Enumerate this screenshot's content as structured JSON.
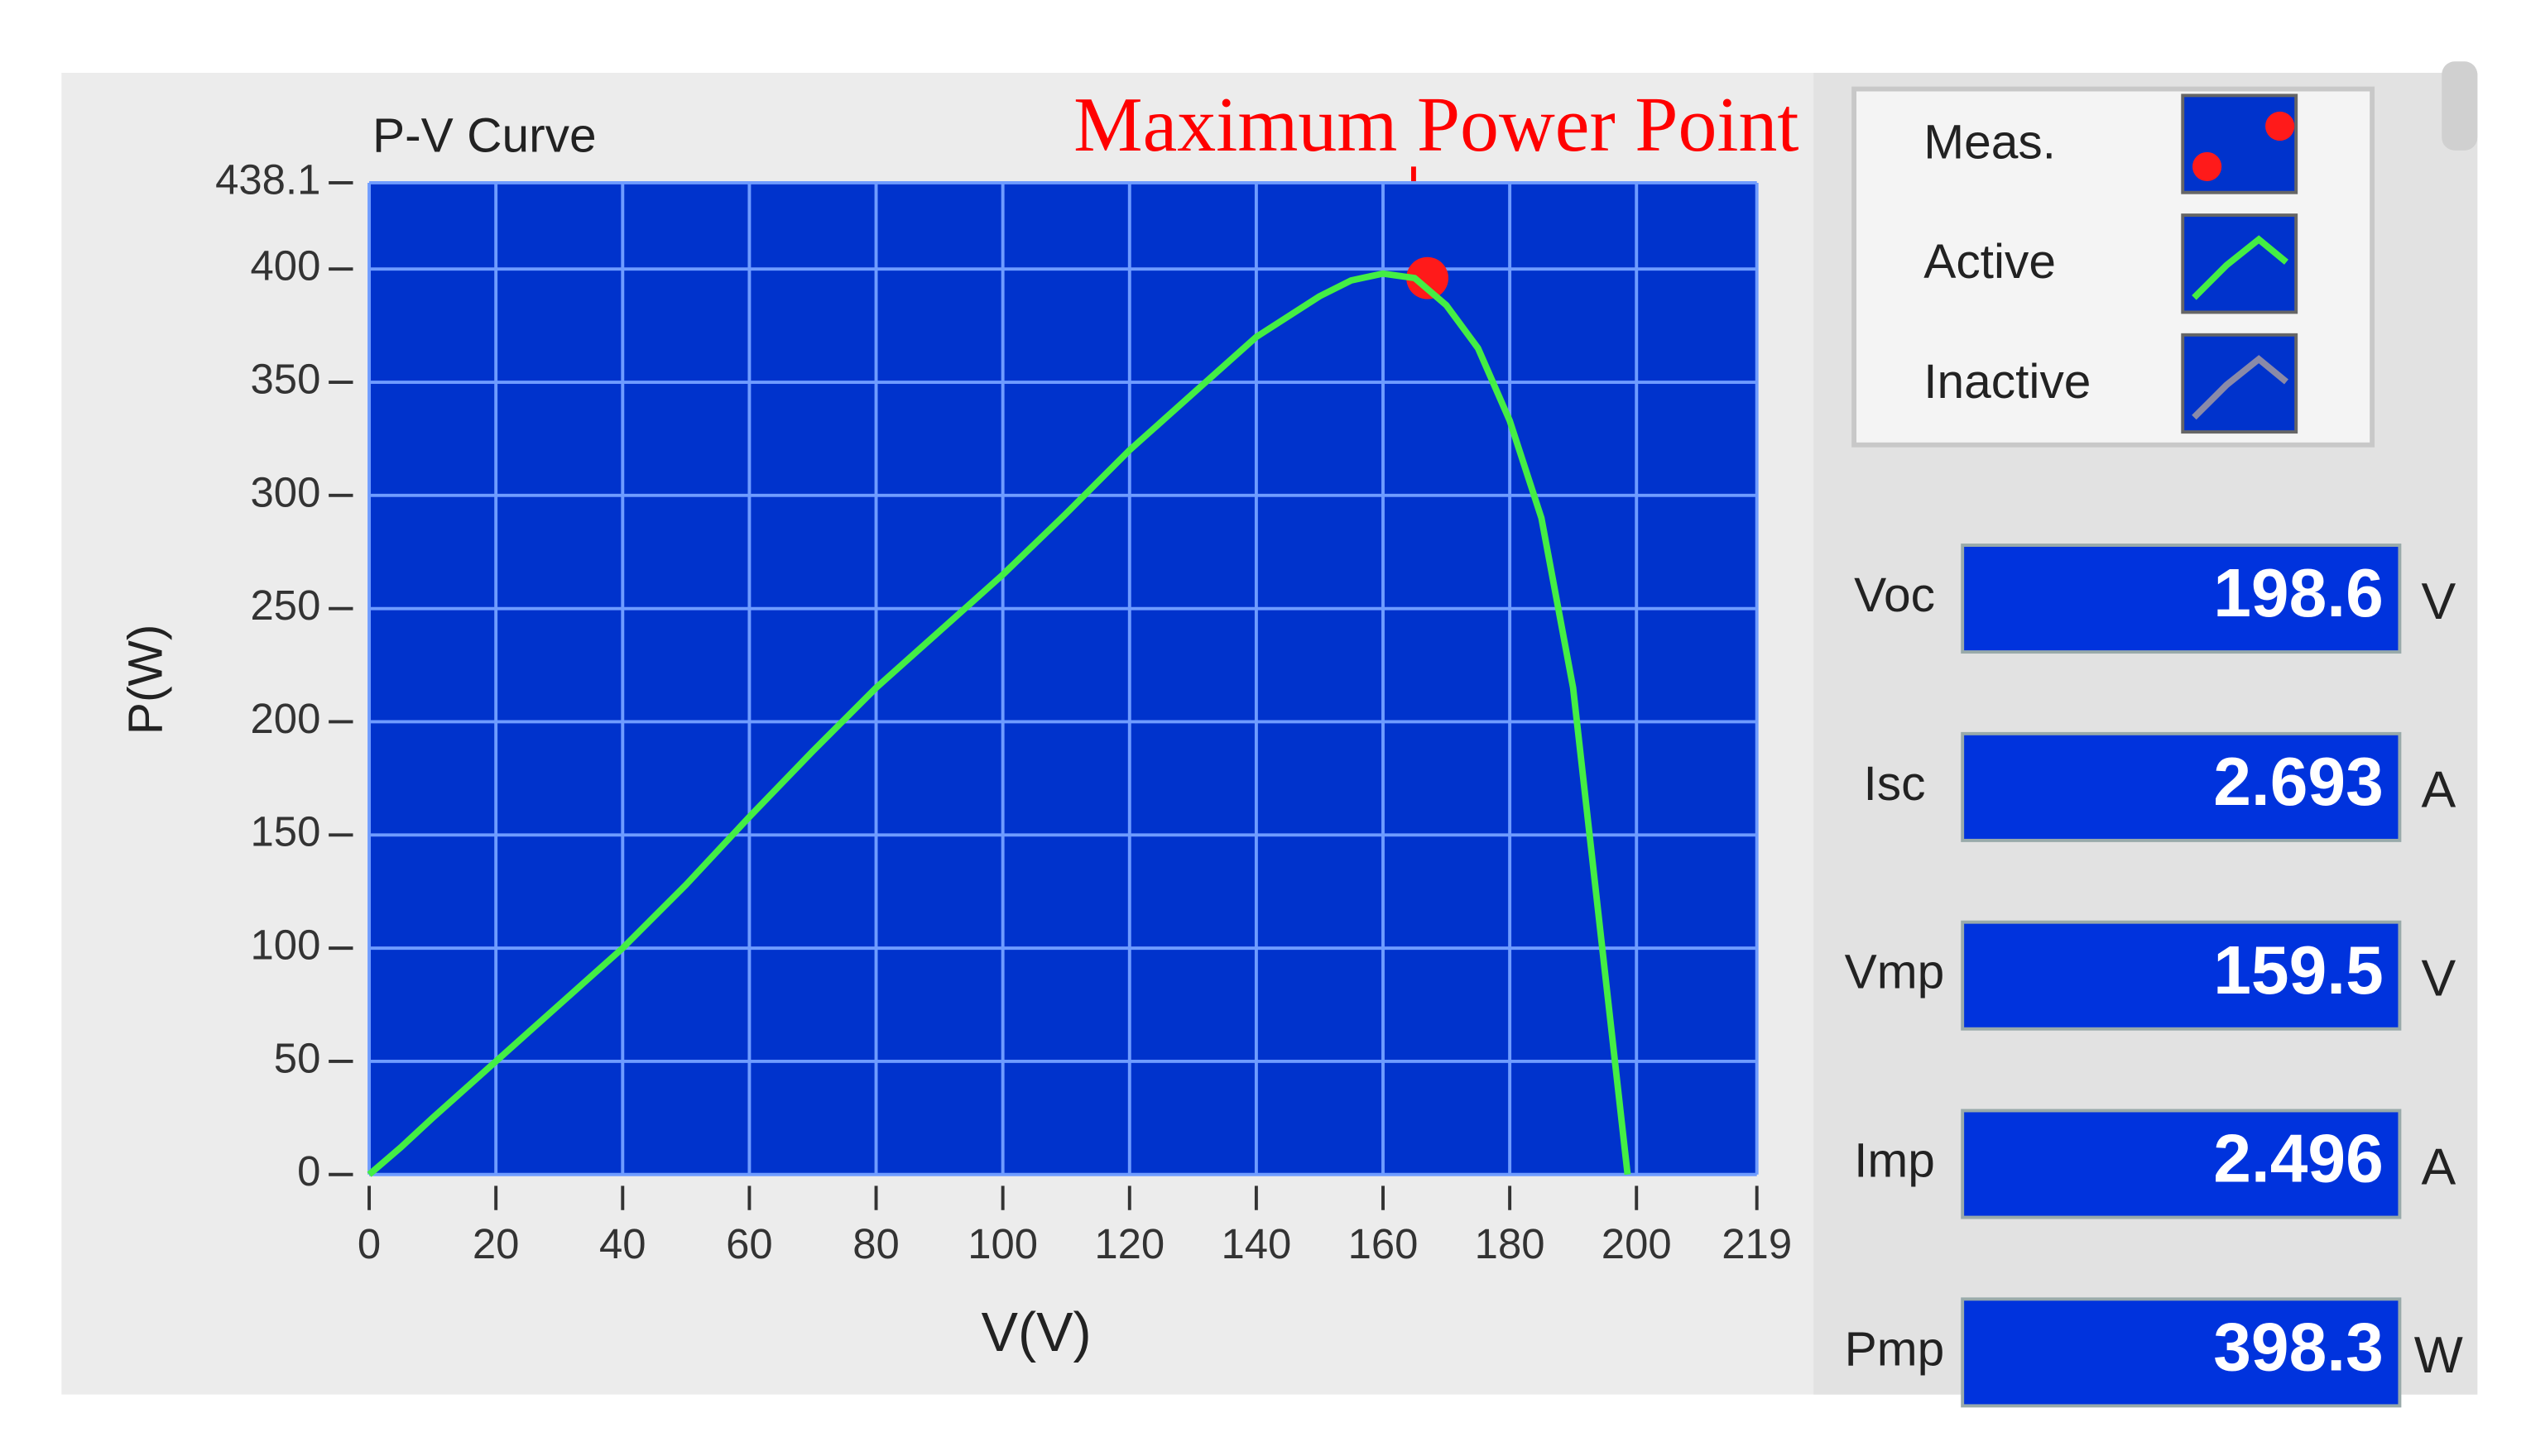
{
  "chart_data": {
    "type": "line",
    "title": "P-V Curve",
    "x_label": "V(V)",
    "y_label": "P(W)",
    "xlim": [
      0,
      219
    ],
    "ylim": [
      0,
      438.1
    ],
    "xticks": [
      0,
      20,
      40,
      60,
      80,
      100,
      120,
      140,
      160,
      180,
      200,
      219
    ],
    "yticks": [
      0,
      50,
      100,
      150,
      200,
      250,
      300,
      350,
      400,
      438.1
    ],
    "grid": true,
    "background": "#0033cc",
    "grid_color": "#6f9cff",
    "series": [
      {
        "name": "Meas.",
        "color": "#ff1a1a",
        "x": [
          167
        ],
        "values": [
          396
        ]
      },
      {
        "name": "Active",
        "color": "#44ee44",
        "x": [
          0,
          5,
          10,
          20,
          30,
          40,
          50,
          60,
          70,
          80,
          90,
          100,
          110,
          120,
          130,
          140,
          150,
          155,
          160,
          165,
          170,
          175,
          180,
          185,
          190,
          195,
          198.6
        ],
        "values": [
          0,
          12,
          25,
          50,
          75,
          100,
          128,
          158,
          187,
          215,
          240,
          265,
          292,
          320,
          345,
          370,
          388,
          395,
          398,
          396,
          384,
          365,
          333,
          290,
          215,
          90,
          0
        ]
      },
      {
        "name": "Inactive",
        "color": "#8a8aa8",
        "x": [],
        "values": []
      }
    ],
    "annotation": {
      "text": "Maximum Power Point",
      "color": "#ff0000"
    }
  },
  "indicators": [
    {
      "label": "Voc",
      "value": 198.6,
      "unit": "V"
    },
    {
      "label": "Isc",
      "value": 2.693,
      "unit": "A"
    },
    {
      "label": "Vmp",
      "value": 159.5,
      "unit": "V"
    },
    {
      "label": "Imp",
      "value": 2.496,
      "unit": "A"
    },
    {
      "label": "Pmp",
      "value": 398.3,
      "unit": "W"
    }
  ]
}
